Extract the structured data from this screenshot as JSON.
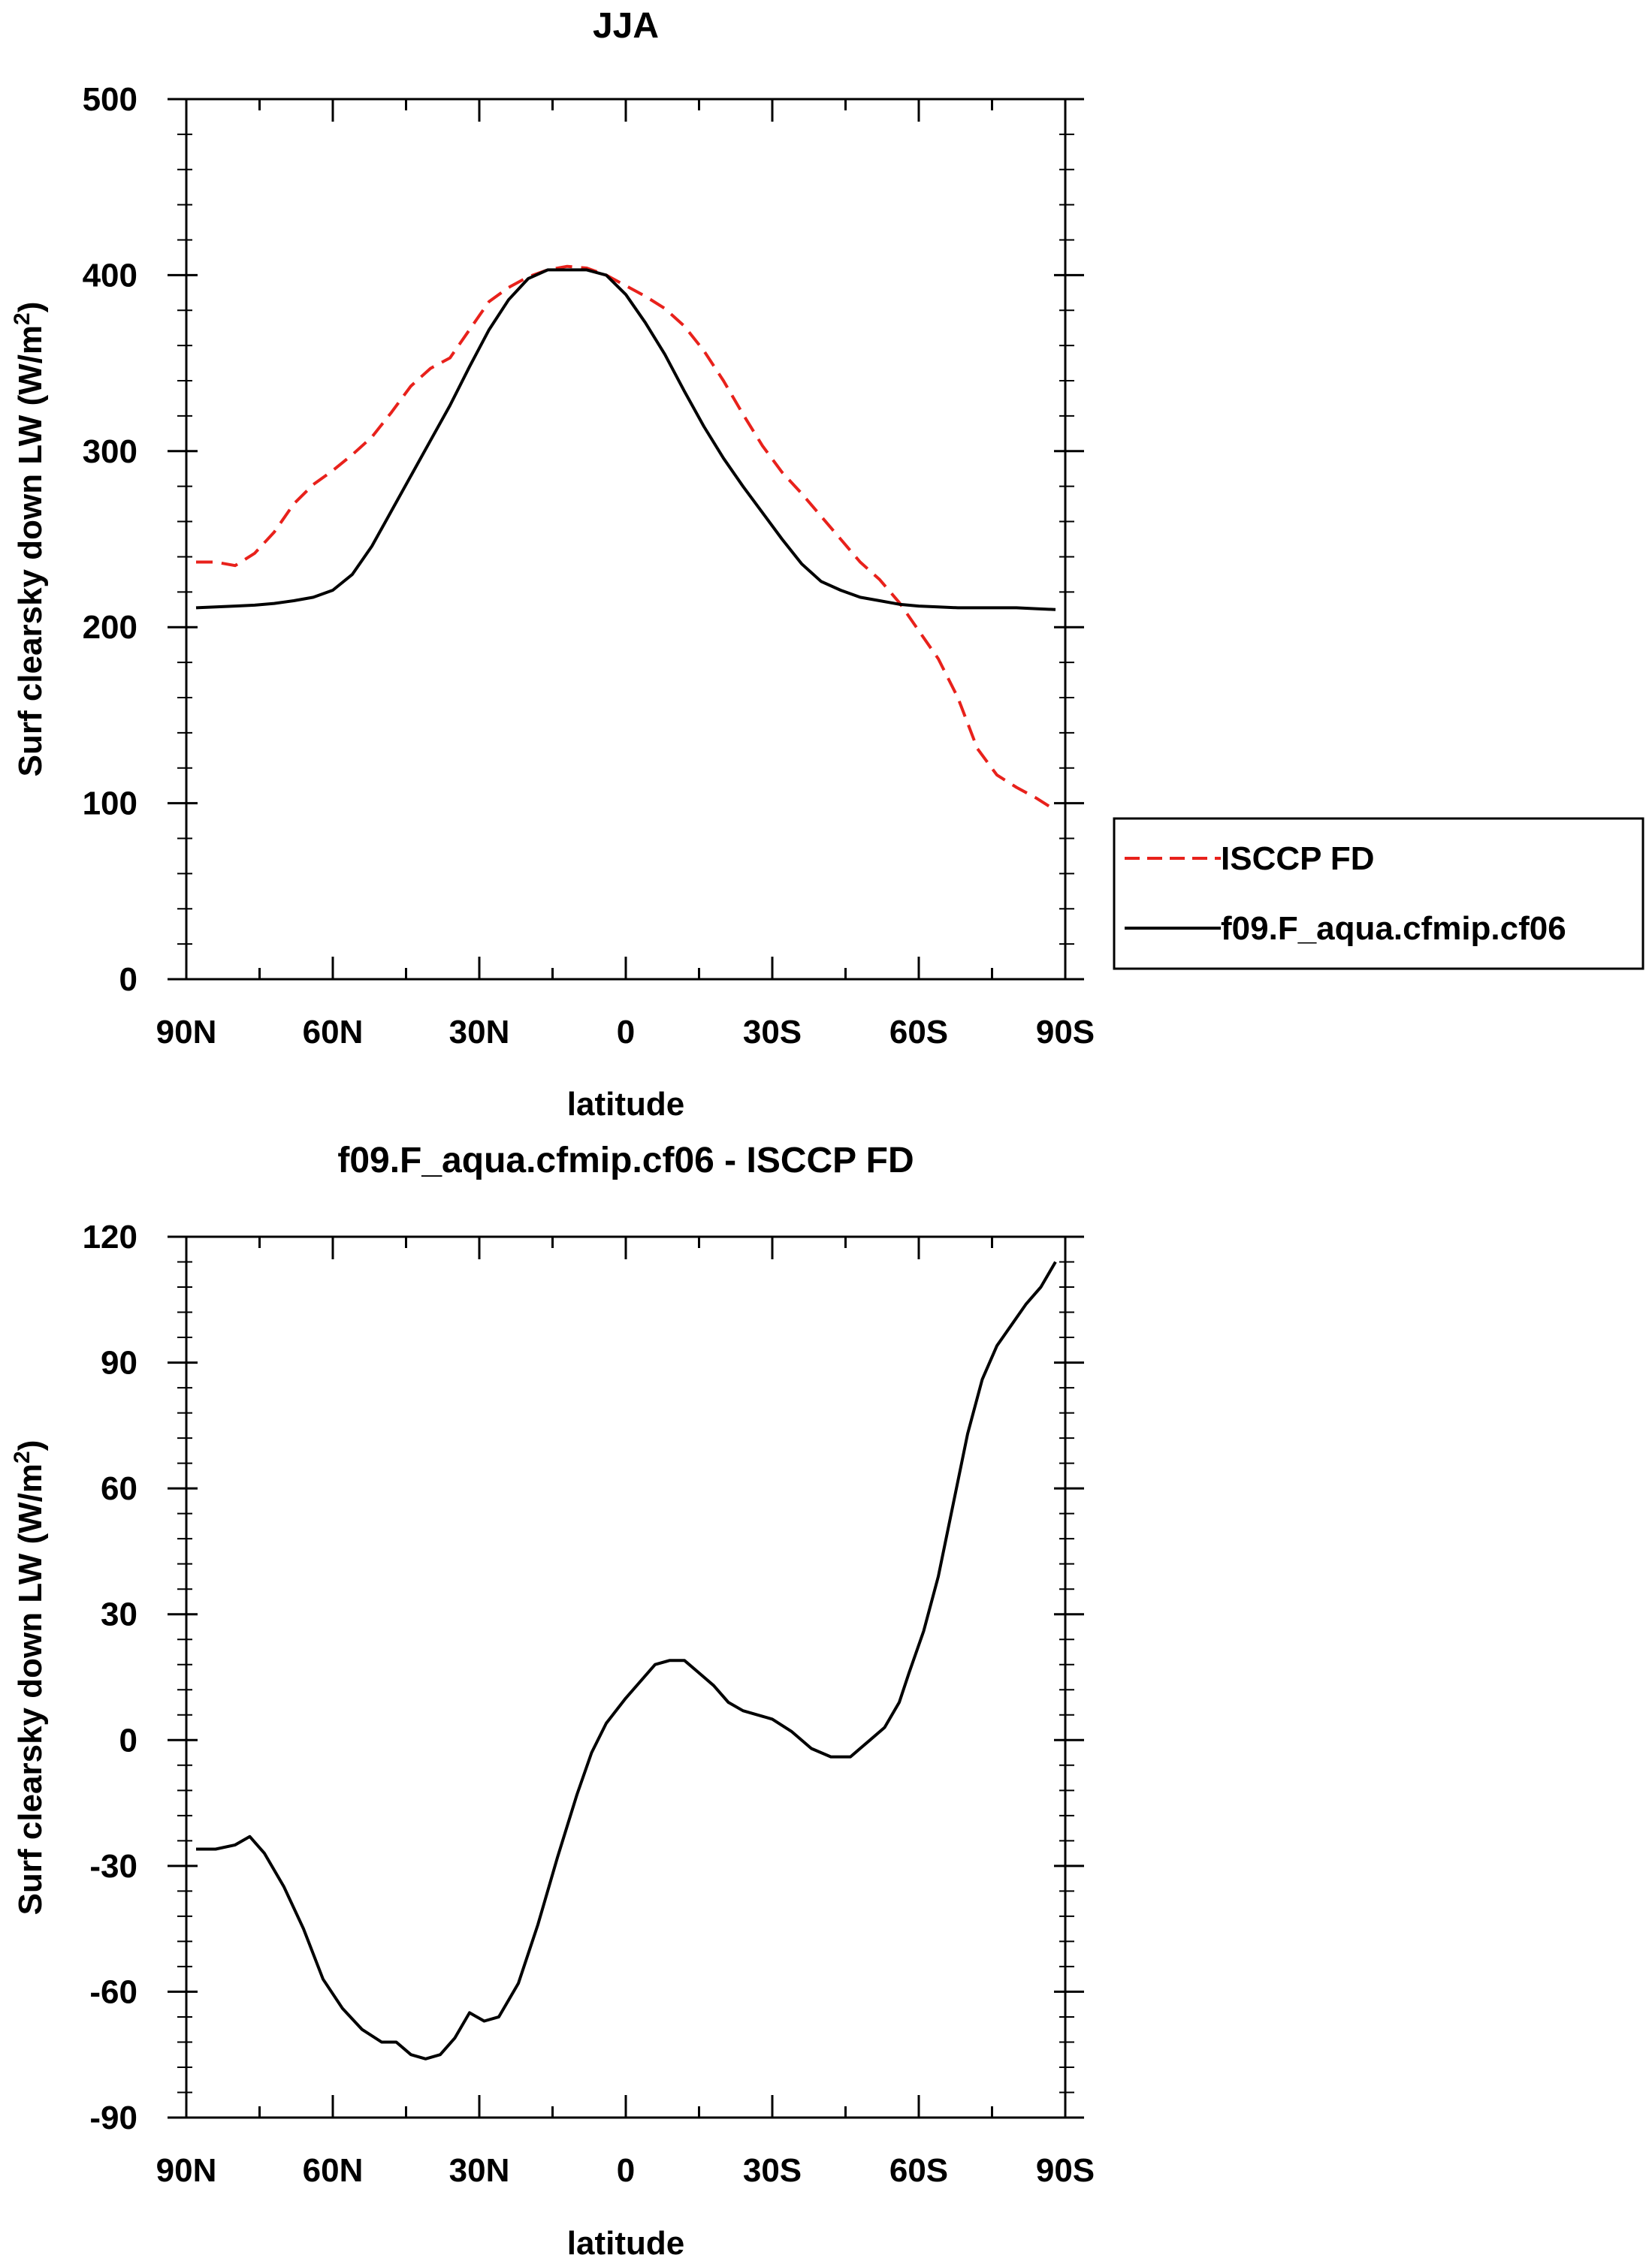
{
  "chart_data": [
    {
      "type": "line",
      "title": "JJA",
      "xlabel": "latitude",
      "ylabel": "Surf clearsky down LW (W/m",
      "ylabel_sup": "2",
      "ylabel_close": ")",
      "xlim": [
        90,
        -90
      ],
      "ylim": [
        0,
        500
      ],
      "xticks": [
        90,
        60,
        30,
        0,
        -30,
        -60,
        -90
      ],
      "xtick_labels": [
        "90N",
        "60N",
        "30N",
        "0",
        "30S",
        "60S",
        "90S"
      ],
      "yticks": [
        0,
        100,
        200,
        300,
        400,
        500
      ],
      "ytick_labels": [
        "0",
        "100",
        "200",
        "300",
        "400",
        "500"
      ],
      "legend": {
        "position": "right",
        "entries": [
          "ISCCP FD",
          "f09.F_aqua.cfmip.cf06"
        ]
      },
      "series": [
        {
          "name": "ISCCP FD",
          "color": "#e8211b",
          "dash": true,
          "x": [
            88,
            84,
            80,
            76,
            72,
            68,
            64,
            60,
            56,
            52,
            48,
            44,
            40,
            36,
            32,
            28,
            24,
            20,
            16,
            12,
            8,
            4,
            0,
            -4,
            -8,
            -12,
            -16,
            -20,
            -24,
            -28,
            -32,
            -36,
            -40,
            -44,
            -48,
            -52,
            -56,
            -60,
            -64,
            -68,
            -72,
            -76,
            -80,
            -84,
            -88
          ],
          "y": [
            237,
            237,
            235,
            242,
            254,
            270,
            281,
            289,
            298,
            308,
            322,
            337,
            347,
            353,
            369,
            385,
            393,
            399,
            403,
            405,
            404,
            400,
            394,
            388,
            381,
            371,
            357,
            340,
            321,
            303,
            288,
            276,
            263,
            250,
            237,
            227,
            214,
            198,
            182,
            160,
            131,
            116,
            109,
            103,
            96
          ]
        },
        {
          "name": "f09.F_aqua.cfmip.cf06",
          "color": "#000000",
          "dash": false,
          "x": [
            88,
            84,
            80,
            76,
            72,
            68,
            64,
            60,
            56,
            52,
            48,
            44,
            40,
            36,
            32,
            28,
            24,
            20,
            16,
            12,
            8,
            4,
            0,
            -4,
            -8,
            -12,
            -16,
            -20,
            -24,
            -28,
            -32,
            -36,
            -40,
            -44,
            -48,
            -52,
            -56,
            -60,
            -64,
            -68,
            -72,
            -76,
            -80,
            -84,
            -88
          ],
          "y": [
            211,
            211.5,
            212,
            212.5,
            213.5,
            215,
            217,
            221,
            230,
            246,
            266,
            286,
            306,
            326,
            348,
            369,
            386,
            398,
            403,
            403,
            403,
            400,
            389,
            373,
            355,
            334,
            314,
            296,
            280,
            265,
            250,
            236,
            226,
            221,
            217,
            215,
            213,
            212,
            211.5,
            211,
            211,
            211,
            211,
            210.5,
            210
          ]
        }
      ]
    },
    {
      "type": "line",
      "title": "f09.F_aqua.cfmip.cf06 - ISCCP FD",
      "xlabel": "latitude",
      "ylabel": "Surf clearsky down LW (W/m",
      "ylabel_sup": "2",
      "ylabel_close": ")",
      "xlim": [
        90,
        -90
      ],
      "ylim": [
        -90,
        120
      ],
      "xticks": [
        90,
        60,
        30,
        0,
        -30,
        -60,
        -90
      ],
      "xtick_labels": [
        "90N",
        "60N",
        "30N",
        "0",
        "30S",
        "60S",
        "90S"
      ],
      "yticks": [
        -90,
        -60,
        -30,
        0,
        30,
        60,
        90,
        120
      ],
      "ytick_labels": [
        "-90",
        "-60",
        "-30",
        "0",
        "30",
        "60",
        "90",
        "120"
      ],
      "series": [
        {
          "name": "f09.F_aqua.cfmip.cf06 - ISCCP FD",
          "color": "#000000",
          "dash": false,
          "x": [
            88,
            84,
            80,
            77,
            74,
            70,
            66,
            62,
            58,
            54,
            50,
            47,
            44,
            41,
            38,
            35,
            32,
            29,
            26,
            22,
            18,
            14,
            10,
            7,
            4,
            0,
            -3,
            -6,
            -9,
            -12,
            -15,
            -18,
            -21,
            -24,
            -27,
            -30,
            -34,
            -38,
            -42,
            -46,
            -50,
            -53,
            -56,
            -58,
            -61,
            -64,
            -67,
            -70,
            -73,
            -76,
            -79,
            -82,
            -85,
            -88
          ],
          "y": [
            -26,
            -26,
            -25,
            -23,
            -27,
            -35,
            -45,
            -57,
            -64,
            -69,
            -72,
            -72,
            -75,
            -76,
            -75,
            -71,
            -65,
            -67,
            -66,
            -58,
            -44,
            -28,
            -13,
            -3,
            4,
            10,
            14,
            18,
            19,
            19,
            16,
            13,
            9,
            7,
            6,
            5,
            2,
            -2,
            -4,
            -4,
            0,
            3,
            9,
            16,
            26,
            39,
            56,
            73,
            86,
            94,
            99,
            104,
            108,
            114
          ]
        }
      ]
    }
  ]
}
